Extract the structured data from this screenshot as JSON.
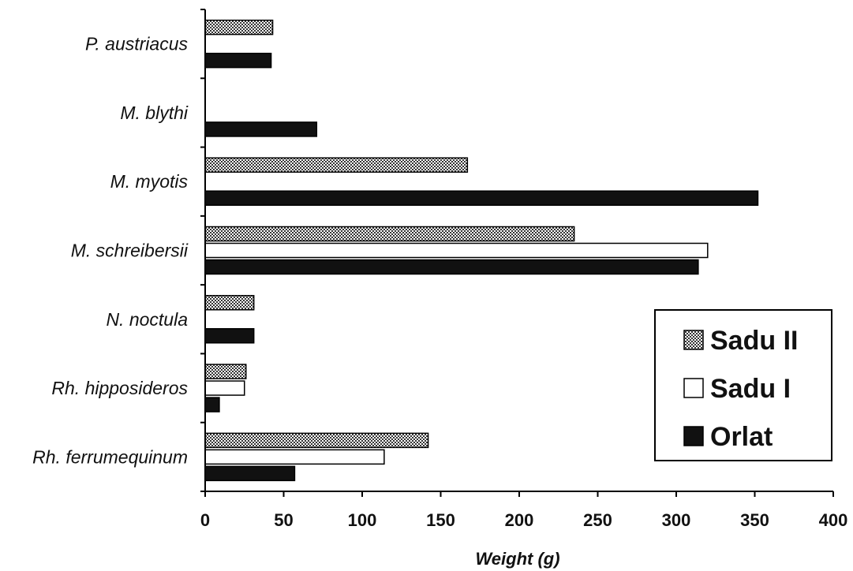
{
  "chart_data": {
    "type": "bar",
    "orientation": "horizontal",
    "categories": [
      "P. austriacus",
      "M. blythi",
      "M. myotis",
      "M. schreibersii",
      "N. noctula",
      "Rh. hipposideros",
      "Rh. ferrumequinum"
    ],
    "series": [
      {
        "name": "Sadu II",
        "values": [
          43,
          null,
          167,
          235,
          31,
          26,
          142
        ]
      },
      {
        "name": "Sadu I",
        "values": [
          null,
          null,
          null,
          320,
          null,
          25,
          114
        ]
      },
      {
        "name": "Orlat",
        "values": [
          42,
          71,
          352,
          314,
          31,
          9,
          57
        ]
      }
    ],
    "xlabel": "Weight (g)",
    "ylabel": "",
    "xlim": [
      0,
      400
    ],
    "xticks": [
      "0",
      "50",
      "100",
      "150",
      "200",
      "250",
      "300",
      "350",
      "400"
    ],
    "legend": "right",
    "grid": false
  },
  "colors": {
    "Sadu II": "#555555",
    "Sadu I": "#ffffff",
    "Orlat": "#111111",
    "axis": "#000000"
  }
}
